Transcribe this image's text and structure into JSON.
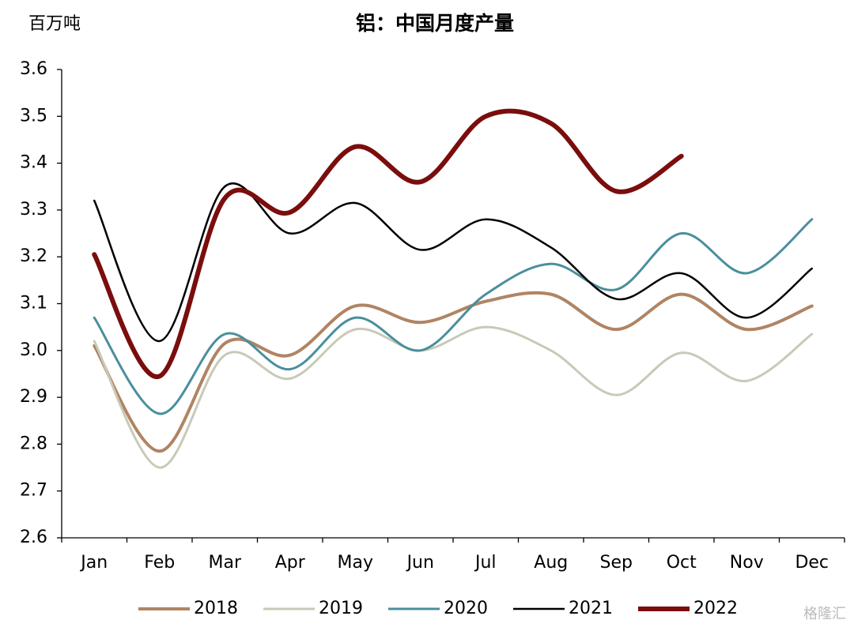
{
  "chart_data": {
    "type": "line",
    "title": "铝：中国月度产量",
    "y_label": "百万吨",
    "watermark": "格隆汇",
    "categories": [
      "Jan",
      "Feb",
      "Mar",
      "Apr",
      "May",
      "Jun",
      "Jul",
      "Aug",
      "Sep",
      "Oct",
      "Nov",
      "Dec"
    ],
    "ylim": [
      2.6,
      3.6
    ],
    "yticks": [
      2.6,
      2.7,
      2.8,
      2.9,
      {
        "value": 3,
        "label": "3.0"
      },
      3.1,
      3.2,
      3.3,
      3.4,
      3.5,
      3.6
    ],
    "grid": false,
    "legend": "bottom",
    "series": [
      {
        "name": "2018",
        "color": "#b08463",
        "values": [
          3.01,
          2.785,
          3.015,
          2.99,
          3.095,
          3.06,
          3.105,
          3.12,
          3.045,
          3.12,
          3.045,
          3.095
        ]
      },
      {
        "name": "2019",
        "color": "#c9c9b9",
        "values": [
          3.02,
          2.75,
          2.99,
          2.94,
          3.045,
          3.0,
          3.05,
          3.0,
          2.905,
          2.995,
          2.935,
          3.035
        ]
      },
      {
        "name": "2020",
        "color": "#4a8f9c",
        "values": [
          3.07,
          2.865,
          3.035,
          2.96,
          3.07,
          3.0,
          3.12,
          3.185,
          3.13,
          3.25,
          3.165,
          3.28
        ]
      },
      {
        "name": "2021",
        "color": "#000000",
        "values": [
          3.32,
          3.02,
          3.35,
          3.25,
          3.315,
          3.215,
          3.28,
          3.22,
          3.11,
          3.165,
          3.07,
          3.175
        ]
      },
      {
        "name": "2022",
        "color": "#7b0d0d",
        "values": [
          3.205,
          2.945,
          3.325,
          3.295,
          3.435,
          3.36,
          3.5,
          3.485,
          3.34,
          3.415,
          null,
          null
        ]
      }
    ]
  }
}
